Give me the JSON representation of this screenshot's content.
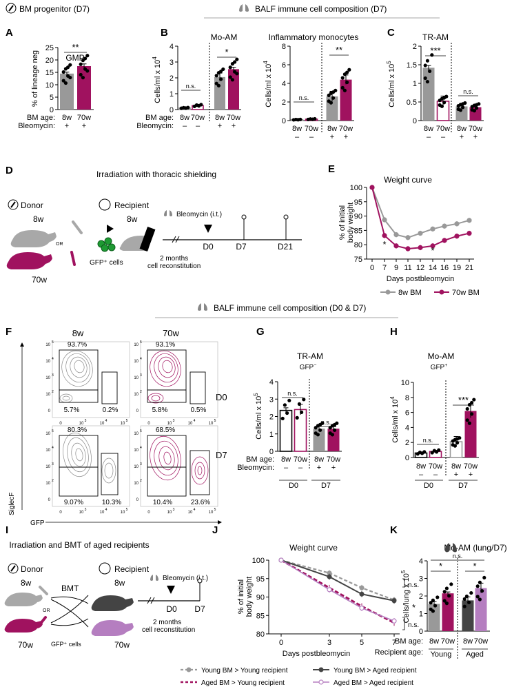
{
  "colors": {
    "young": "#999999",
    "aged": "#a0125f",
    "dark": "#444444",
    "lilac": "#b57ec0",
    "black": "#000000"
  },
  "header": {
    "bm_progenitor": "BM progenitor (D7)",
    "balf_d7": "BALF immune cell composition (D7)",
    "balf_d0_d7": "BALF immune cell composition (D0 & D7)"
  },
  "panels": {
    "A": {
      "letter": "A",
      "title": "GMP",
      "ylabel": "% of lineage neg",
      "sig": "**",
      "rows": [
        {
          "label": "BM age:",
          "vals": [
            "8w",
            "70w"
          ]
        },
        {
          "label": "Bleomycin:",
          "vals": [
            "+",
            "+"
          ]
        }
      ]
    },
    "B": {
      "letter": "B",
      "title1": "Mo-AM",
      "title2": "Inflammatory monocytes",
      "ylabel": "Cells/ml x 10",
      "exp": "4",
      "sig1": [
        "n.s.",
        "*"
      ],
      "sig2": [
        "n.s.",
        "**"
      ],
      "rows": [
        {
          "label": "BM age:",
          "vals": [
            "8w",
            "70w",
            "8w",
            "70w"
          ]
        },
        {
          "label": "Bleomycin:",
          "vals": [
            "–",
            "–",
            "+",
            "+"
          ]
        }
      ]
    },
    "C": {
      "letter": "C",
      "title": "TR-AM",
      "ylabel": "Cells/ml x 10",
      "exp": "5",
      "sig": [
        "***",
        "n.s."
      ],
      "rows": [
        {
          "vals": [
            "8w",
            "70w",
            "8w",
            "70w"
          ]
        },
        {
          "vals": [
            "–",
            "–",
            "+",
            "+"
          ]
        }
      ]
    },
    "D": {
      "letter": "D",
      "title": "Irradiation with thoracic shielding",
      "donor": "Donor",
      "recipient": "Recipient",
      "age8": "8w",
      "age70": "70w",
      "or": "OR",
      "gfp": "GFP⁺ cells",
      "bleo": "Bleomycin (i.t.)",
      "d0": "D0",
      "d7": "D7",
      "d21": "D21",
      "months": "2 months",
      "recon": "cell reconstitution"
    },
    "E": {
      "letter": "E",
      "title": "Weight curve",
      "ylabel1": "% of initial",
      "ylabel2": "body weight",
      "xlabel": "Days postbleomycin",
      "legend": [
        "8w BM",
        "70w BM"
      ],
      "stars": [
        "*",
        "*"
      ]
    },
    "F": {
      "letter": "F",
      "cols": [
        "8w",
        "70w"
      ],
      "rows": [
        "D0",
        "D7"
      ],
      "xlabel": "GFP",
      "ylabel": "SiglecF",
      "d0_8w": [
        "93.7%",
        "5.7%",
        "0.2%"
      ],
      "d0_70w": [
        "93.1%",
        "5.8%",
        "0.5%"
      ],
      "d7_8w": [
        "80.3%",
        "9.07%",
        "10.3%"
      ],
      "d7_70w": [
        "68.5%",
        "10.4%",
        "23.6%"
      ],
      "ticks_x": [
        "0",
        "10",
        "10",
        "10"
      ],
      "ticks_y": [
        "0",
        "10",
        "10",
        "10",
        "10"
      ]
    },
    "G": {
      "letter": "G",
      "title": "TR-AM",
      "sub": "GFP",
      "sub_sup": "−",
      "ylabel": "Cells/ml x 10",
      "exp": "5",
      "sig": [
        "n.s.",
        "n.s."
      ],
      "rows": [
        {
          "label": "BM age:",
          "vals": [
            "8w",
            "70w",
            "8w",
            "70w"
          ]
        },
        {
          "label": "Bleomycin:",
          "vals": [
            "–",
            "–",
            "+",
            "+"
          ]
        }
      ],
      "groups": [
        "D0",
        "D7"
      ]
    },
    "H": {
      "letter": "H",
      "title": "Mo-AM",
      "sub": "GFP",
      "sub_sup": "+",
      "ylabel": "Cells/ml x 10",
      "exp": "4",
      "sig": [
        "n.s.",
        "***"
      ],
      "rows": [
        {
          "vals": [
            "8w",
            "70w",
            "8w",
            "70w"
          ]
        },
        {
          "vals": [
            "–",
            "–",
            "+",
            "+"
          ]
        }
      ],
      "groups": [
        "D0",
        "D7"
      ]
    },
    "I": {
      "letter": "I",
      "title": "Irradiation and BMT of aged recipients",
      "donor": "Donor",
      "recipient": "Recipient",
      "bmt": "BMT",
      "age8": "8w",
      "age70": "70w",
      "or": "OR",
      "gfp": "GFP⁺ cells",
      "bleo": "Bleomycin (i.t.)",
      "d0": "D0",
      "d7": "D7",
      "months": "2 months",
      "recon": "cell reconstitution"
    },
    "J": {
      "letter": "J",
      "title": "Weight curve",
      "ylabel1": "% of initial",
      "ylabel2": "body weight",
      "xlabel": "Days postbleomycin",
      "sig": [
        "n.s.",
        "*",
        "n.s."
      ]
    },
    "K": {
      "letter": "K",
      "title": "Mo-AM (lung/D7)",
      "ylabel": "Cells/lung x 10",
      "exp": "5",
      "sig": [
        "*",
        "n.s.",
        "*"
      ],
      "rows": [
        {
          "label": "BM age:",
          "vals": [
            "8w",
            "70w",
            "8w",
            "70w"
          ]
        },
        {
          "label": "Recipient age:",
          "vals": [
            "Young",
            "Aged"
          ]
        }
      ]
    }
  },
  "legend_j": [
    "Young BM > Young recipient",
    "Aged BM  > Young recipient",
    "Young BM > Aged recipient",
    "Aged BM  > Aged recipient"
  ],
  "chart_data": [
    {
      "id": "A",
      "type": "bar",
      "title": "GMP",
      "ylabel": "% of lineage neg",
      "ylim": [
        0,
        25
      ],
      "yticks": [
        0,
        5,
        10,
        15,
        20,
        25
      ],
      "categories": [
        "8w",
        "70w"
      ],
      "values": [
        14.5,
        17.5
      ],
      "errors": [
        0.6,
        0.9
      ]
    },
    {
      "id": "B1",
      "type": "bar",
      "title": "Mo-AM",
      "ylabel": "Cells/ml x 10^4",
      "ylim": [
        0,
        4
      ],
      "yticks": [
        0,
        1,
        2,
        3,
        4
      ],
      "categories": [
        "8w –",
        "70w –",
        "8w +",
        "70w +"
      ],
      "values": [
        0.1,
        0.25,
        2.05,
        2.55
      ],
      "errors": [
        0.03,
        0.08,
        0.25,
        0.12
      ]
    },
    {
      "id": "B2",
      "type": "bar",
      "title": "Inflammatory monocytes",
      "ylabel": "Cells/ml x 10^4",
      "ylim": [
        0,
        8
      ],
      "yticks": [
        0,
        2,
        4,
        6,
        8
      ],
      "categories": [
        "8w –",
        "70w –",
        "8w +",
        "70w +"
      ],
      "values": [
        0.1,
        0.15,
        2.6,
        4.4
      ],
      "errors": [
        0.05,
        0.05,
        0.55,
        0.5
      ]
    },
    {
      "id": "C",
      "type": "bar",
      "title": "TR-AM",
      "ylabel": "Cells/ml x 10^5",
      "ylim": [
        0,
        2
      ],
      "yticks": [
        0,
        0.5,
        1,
        1.5,
        2
      ],
      "categories": [
        "8w –",
        "70w –",
        "8w +",
        "70w +"
      ],
      "values": [
        1.42,
        0.52,
        0.38,
        0.36
      ],
      "errors": [
        0.06,
        0.14,
        0.05,
        0.05
      ]
    },
    {
      "id": "E",
      "type": "line",
      "title": "Weight curve",
      "ylabel": "% of initial body weight",
      "xlabel": "Days postbleomycin",
      "ylim": [
        75,
        100
      ],
      "yticks": [
        75,
        80,
        85,
        90,
        95,
        100
      ],
      "x": [
        0,
        7,
        9,
        11,
        12,
        14,
        16,
        19,
        21
      ],
      "series": [
        {
          "name": "8w BM",
          "values": [
            100,
            88.7,
            83.5,
            82.5,
            84,
            85.5,
            86.5,
            87.3,
            88.5
          ]
        },
        {
          "name": "70w BM",
          "values": [
            100,
            83.2,
            79.6,
            78.6,
            79,
            79.6,
            81.5,
            83,
            84
          ]
        }
      ]
    },
    {
      "id": "G",
      "type": "bar",
      "title": "TR-AM GFP−",
      "ylabel": "Cells/ml x 10^5",
      "ylim": [
        0,
        4
      ],
      "yticks": [
        0,
        1,
        2,
        3,
        4
      ],
      "categories": [
        "8w –",
        "70w –",
        "8w +",
        "70w +"
      ],
      "values": [
        2.35,
        2.4,
        1.3,
        1.3
      ],
      "errors": [
        0.15,
        0.3,
        0.15,
        0.12
      ]
    },
    {
      "id": "H",
      "type": "bar",
      "title": "Mo-AM GFP+",
      "ylabel": "Cells/ml x 10^4",
      "ylim": [
        0,
        10
      ],
      "yticks": [
        0,
        2,
        4,
        6,
        8,
        10
      ],
      "categories": [
        "8w –",
        "70w –",
        "8w +",
        "70w +"
      ],
      "values": [
        0.6,
        0.8,
        2.1,
        6.2
      ],
      "errors": [
        0.05,
        0.15,
        0.7,
        0.9
      ]
    },
    {
      "id": "J",
      "type": "line",
      "title": "Weight curve",
      "ylabel": "% of initial body weight",
      "xlabel": "Days postbleomycin",
      "ylim": [
        80,
        100
      ],
      "yticks": [
        80,
        85,
        90,
        95,
        100
      ],
      "x": [
        0,
        3,
        5,
        7
      ],
      "series": [
        {
          "name": "Young BM > Young recipient",
          "values": [
            100,
            96.5,
            92.5,
            89.2
          ]
        },
        {
          "name": "Aged BM > Young recipient",
          "values": [
            100,
            92.5,
            87.5,
            83
          ]
        },
        {
          "name": "Young BM > Aged recipient",
          "values": [
            100,
            95.5,
            90.8,
            89
          ]
        },
        {
          "name": "Aged BM > Aged recipient",
          "values": [
            100,
            92,
            87,
            83.5
          ]
        }
      ]
    },
    {
      "id": "K",
      "type": "bar",
      "title": "Mo-AM (lung/D7)",
      "ylabel": "Cells/lung x 10^5",
      "ylim": [
        0,
        4
      ],
      "yticks": [
        0,
        1,
        2,
        3,
        4
      ],
      "categories": [
        "8w Young",
        "70w Young",
        "8w Aged",
        "70w Aged"
      ],
      "values": [
        1.55,
        2.15,
        1.75,
        2.45
      ],
      "errors": [
        0.12,
        0.08,
        0.2,
        0.28
      ]
    }
  ]
}
